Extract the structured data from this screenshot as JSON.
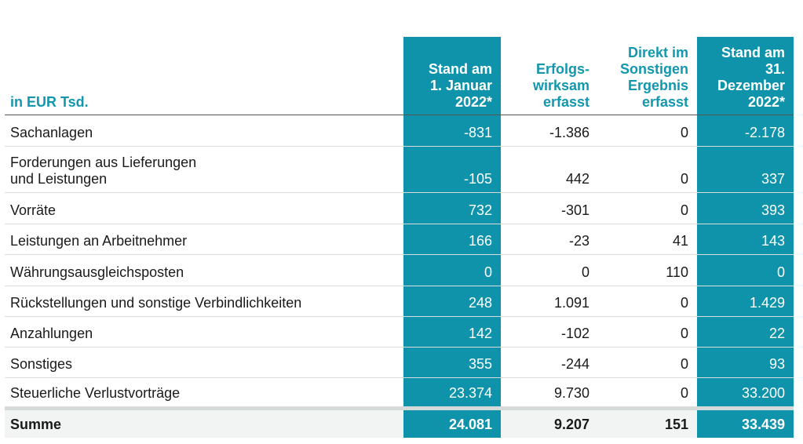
{
  "table": {
    "columns": [
      "in EUR Tsd.",
      "Stand am\n1. Januar\n2022*",
      "Erfolgs-\nwirksam\nerfasst",
      "Direkt im\nSonstigen\nErgebnis\nerfasst",
      "Stand am\n31.\nDezember\n2022*"
    ],
    "highlight_color": "#0e93aa",
    "header_text_color": "#1397ae",
    "rows": [
      {
        "label": "Sachanlagen",
        "values": [
          "-831",
          "-1.386",
          "0",
          "-2.178"
        ]
      },
      {
        "label": "Forderungen aus Lieferungen\nund Leistungen",
        "values": [
          "-105",
          "442",
          "0",
          "337"
        ]
      },
      {
        "label": "Vorräte",
        "values": [
          "732",
          "-301",
          "0",
          "393"
        ]
      },
      {
        "label": "Leistungen an Arbeitnehmer",
        "values": [
          "166",
          "-23",
          "41",
          "143"
        ]
      },
      {
        "label": "Währungsausgleichsposten",
        "values": [
          "0",
          "0",
          "110",
          "0"
        ]
      },
      {
        "label": "Rückstellungen und sonstige Verbindlichkeiten",
        "values": [
          "248",
          "1.091",
          "0",
          "1.429"
        ]
      },
      {
        "label": "Anzahlungen",
        "values": [
          "142",
          "-102",
          "0",
          "22"
        ]
      },
      {
        "label": "Sonstiges",
        "values": [
          "355",
          "-244",
          "0",
          "93"
        ]
      },
      {
        "label": "Steuerliche Verlustvorträge",
        "values": [
          "23.374",
          "9.730",
          "0",
          "33.200"
        ]
      }
    ],
    "total": {
      "label": "Summe",
      "values": [
        "24.081",
        "9.207",
        "151",
        "33.439"
      ]
    }
  }
}
